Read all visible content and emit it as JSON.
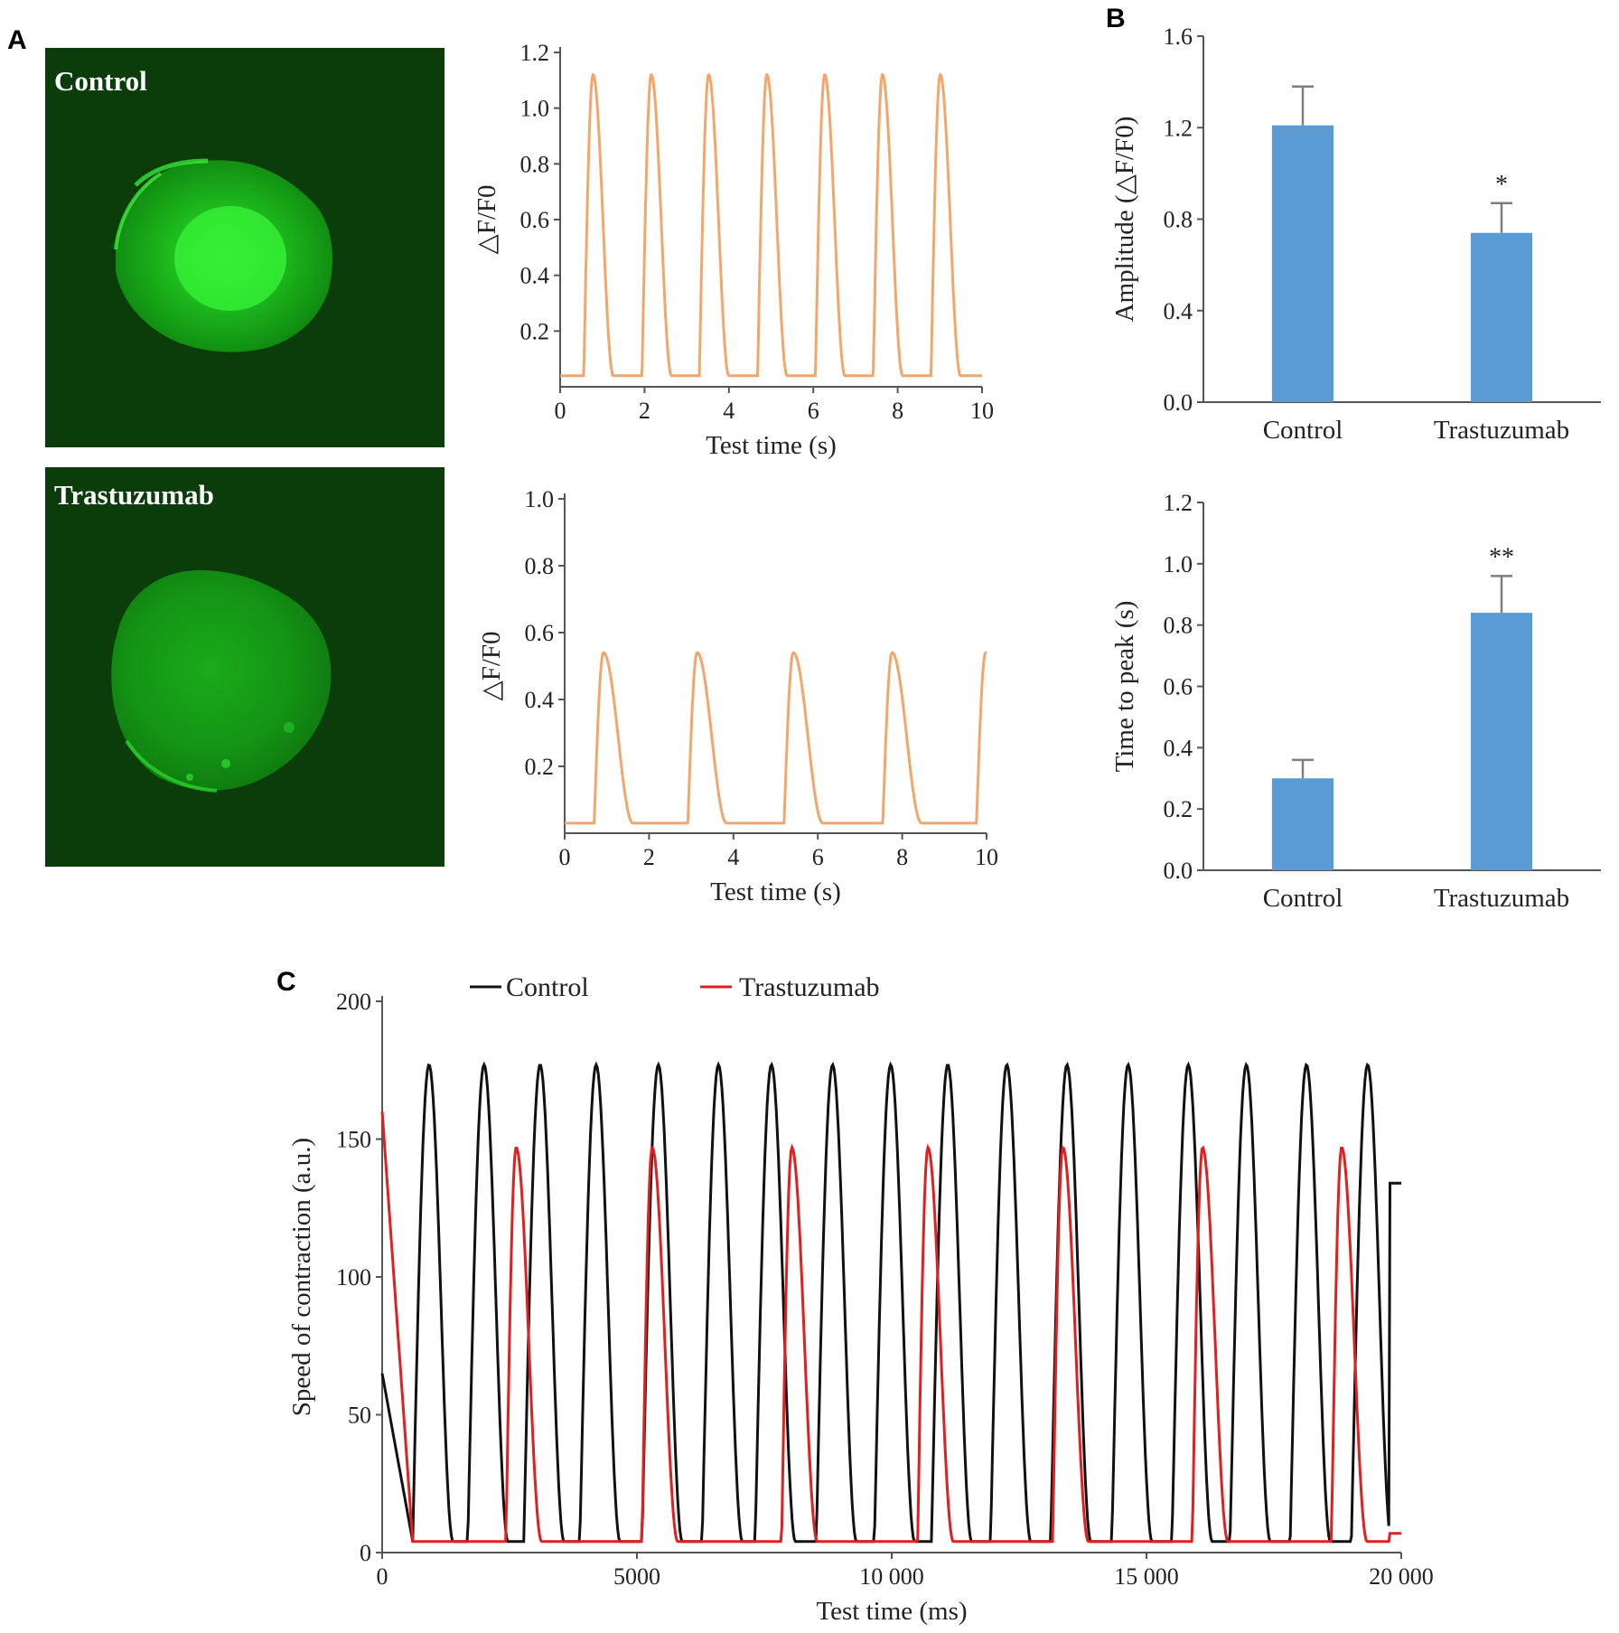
{
  "colors": {
    "trace_orange": "#f2a66a",
    "bar_blue": "#5b9bd5",
    "error_gray": "#7f7f7f",
    "control_line": "#111111",
    "trastuzumab_line": "#e02020",
    "micrograph_bg": "#0b3d0b",
    "cell_green": "#22d622"
  },
  "panels": {
    "A": {
      "label": "A"
    },
    "B": {
      "label": "B"
    },
    "C": {
      "label": "C"
    }
  },
  "micrographs": [
    {
      "label": "Control"
    },
    {
      "label": "Trastuzumab"
    }
  ],
  "chart_data": [
    {
      "id": "A_control_trace",
      "type": "line",
      "xlabel": "Test time (s)",
      "ylabel": "△F/F0",
      "xlim": [
        0,
        10
      ],
      "ylim": [
        0,
        1.2
      ],
      "xticks": [
        "0",
        "2",
        "4",
        "6",
        "8",
        "10"
      ],
      "yticks": [
        "0.2",
        "0.4",
        "0.6",
        "0.8",
        "1.0",
        "1.2"
      ],
      "series": [
        {
          "peaks_x": [
            0.78,
            2.16,
            3.52,
            4.9,
            6.27,
            7.64,
            9.01
          ],
          "peak_y": 1.12,
          "baseline": 0.04,
          "rise_s": 0.22,
          "decay_s": 0.48
        }
      ]
    },
    {
      "id": "A_trastuzumab_trace",
      "type": "line",
      "xlabel": "Test time (s)",
      "ylabel": "△F/F0",
      "xlim": [
        0,
        10
      ],
      "ylim": [
        0,
        1.0
      ],
      "xticks": [
        "0",
        "2",
        "4",
        "6",
        "8",
        "10"
      ],
      "yticks": [
        "0.2",
        "0.4",
        "0.6",
        "0.8",
        "1.0"
      ],
      "series": [
        {
          "peaks_x": [
            0.92,
            3.14,
            5.42,
            7.76,
            9.98
          ],
          "peak_y": 0.54,
          "baseline": 0.03,
          "rise_s": 0.22,
          "decay_s": 0.7
        }
      ]
    },
    {
      "id": "B_amplitude",
      "type": "bar",
      "categories": [
        "Control",
        "Trastuzumab"
      ],
      "values": [
        1.21,
        0.74
      ],
      "errors": [
        0.17,
        0.13
      ],
      "significance": [
        "",
        "*"
      ],
      "ylabel": "Amplitude (△F/F0)",
      "ylim": [
        0,
        1.6
      ],
      "yticks": [
        "0.0",
        "0.4",
        "0.8",
        "1.2",
        "1.6"
      ]
    },
    {
      "id": "B_time_to_peak",
      "type": "bar",
      "categories": [
        "Control",
        "Trastuzumab"
      ],
      "values": [
        0.3,
        0.84
      ],
      "errors": [
        0.06,
        0.12
      ],
      "significance": [
        "",
        "**"
      ],
      "ylabel": "Time to peak (s)",
      "ylim": [
        0,
        1.2
      ],
      "yticks": [
        "0.0",
        "0.2",
        "0.4",
        "0.6",
        "0.8",
        "1.0",
        "1.2"
      ]
    },
    {
      "id": "C_contraction",
      "type": "line",
      "xlabel": "Test time (ms)",
      "ylabel": "Speed of contraction (a.u.)",
      "xlim": [
        0,
        20000
      ],
      "ylim": [
        0,
        200
      ],
      "xticks": [
        "0",
        "5000",
        "10 000",
        "15 000",
        "20 000"
      ],
      "yticks": [
        "0",
        "50",
        "100",
        "150",
        "200"
      ],
      "legend": [
        "Control",
        "Trastuzumab"
      ],
      "legend_position": "top",
      "series": [
        {
          "name": "Control",
          "peaks_x": [
            920,
            2000,
            3100,
            4200,
            5420,
            6600,
            7640,
            8840,
            9980,
            11100,
            12260,
            13440,
            14640,
            15820,
            16960,
            18140,
            19340
          ],
          "peak_y": 177,
          "baseline": 4,
          "rise_ms": 320,
          "decay_ms": 470,
          "start_y": 65,
          "end_y": 134
        },
        {
          "name": "Trastuzumab",
          "peaks_x": [
            2630,
            5300,
            8040,
            10710,
            13360,
            16100,
            18830
          ],
          "peak_y": 147,
          "baseline": 4,
          "rise_ms": 200,
          "decay_ms": 500,
          "start_y": 160,
          "end_y": 7
        }
      ]
    }
  ]
}
